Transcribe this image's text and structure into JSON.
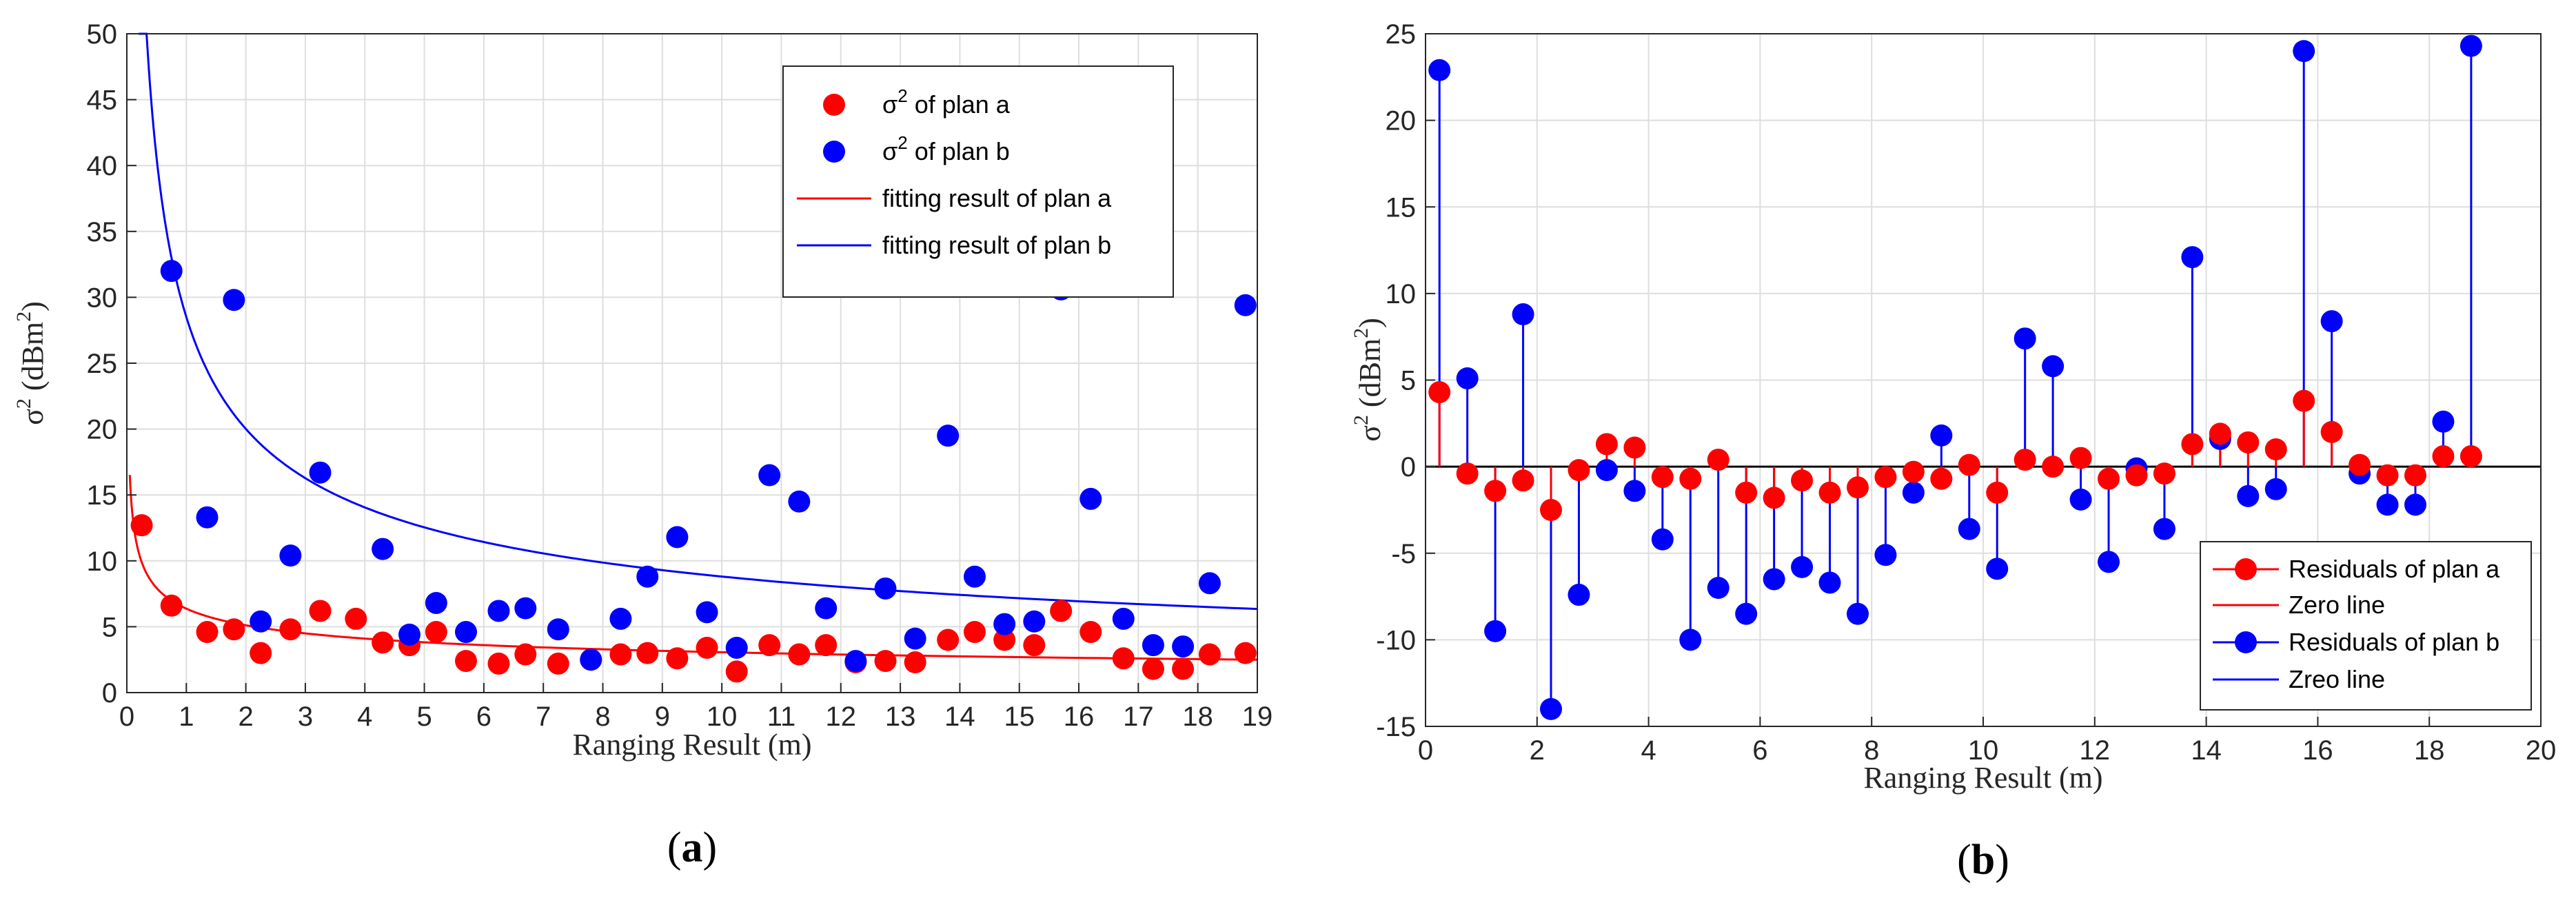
{
  "chart_data": [
    {
      "type": "scatter",
      "caption_open": "(",
      "caption_letter": "a",
      "caption_close": ")",
      "xlabel": "Ranging Result (m)",
      "ylabel_main": "σ",
      "ylabel_sup": "2",
      "ylabel_unit_open": " (dBm",
      "ylabel_unit_sup": "2",
      "ylabel_unit_close": ")",
      "xlim": [
        0,
        19
      ],
      "ylim": [
        0,
        50
      ],
      "xticks": [
        0,
        1,
        2,
        3,
        4,
        5,
        6,
        7,
        8,
        9,
        10,
        11,
        12,
        13,
        14,
        15,
        16,
        17,
        18,
        19
      ],
      "yticks": [
        0,
        5,
        10,
        15,
        20,
        25,
        30,
        35,
        40,
        45,
        50
      ],
      "grid": true,
      "legend_position": "top-right",
      "legend": [
        {
          "kind": "marker",
          "label_main": "σ",
          "label_sup": "2",
          "label_rest": " of plan a",
          "color": "#ff0000"
        },
        {
          "kind": "marker",
          "label_main": "σ",
          "label_sup": "2",
          "label_rest": " of plan b",
          "color": "#0000ff"
        },
        {
          "kind": "line",
          "label": "fitting result of plan a",
          "color": "#ff0000"
        },
        {
          "kind": "line",
          "label": "fitting result of plan b",
          "color": "#0000ff"
        }
      ],
      "series": [
        {
          "name": "σ2 of plan a",
          "color": "#ff0000",
          "x": [
            0.25,
            0.75,
            1.35,
            1.8,
            2.25,
            2.75,
            3.25,
            3.85,
            4.3,
            4.75,
            5.2,
            5.7,
            6.25,
            6.7,
            7.25,
            7.8,
            8.3,
            8.75,
            9.25,
            9.75,
            10.25,
            10.8,
            11.3,
            11.75,
            12.25,
            12.75,
            13.25,
            13.8,
            14.25,
            14.75,
            15.25,
            15.7,
            16.2,
            16.75,
            17.25,
            17.75,
            18.2,
            18.8
          ],
          "y": [
            12.7,
            6.6,
            4.6,
            4.8,
            3.0,
            4.8,
            6.2,
            5.6,
            3.8,
            3.6,
            4.6,
            2.4,
            2.2,
            2.9,
            2.2,
            2.5,
            2.9,
            3.0,
            2.6,
            3.4,
            1.6,
            3.6,
            2.9,
            3.6,
            2.3,
            2.4,
            2.3,
            4.0,
            4.6,
            4.0,
            3.6,
            6.2,
            4.6,
            2.6,
            1.8,
            1.8,
            2.9,
            3.0
          ]
        },
        {
          "name": "σ2 of plan b",
          "color": "#0000ff",
          "x": [
            0.75,
            1.35,
            1.8,
            2.25,
            2.75,
            3.25,
            4.3,
            4.75,
            5.2,
            5.7,
            6.25,
            6.7,
            7.25,
            7.8,
            8.3,
            8.75,
            9.25,
            9.75,
            10.25,
            10.8,
            11.3,
            11.75,
            12.25,
            12.75,
            13.25,
            13.8,
            14.25,
            14.75,
            15.25,
            15.7,
            16.2,
            16.75,
            17.25,
            17.75,
            18.2,
            18.8
          ],
          "y": [
            32.0,
            13.3,
            29.8,
            5.4,
            10.4,
            16.7,
            10.9,
            4.4,
            6.8,
            4.6,
            6.2,
            6.4,
            4.8,
            2.5,
            5.6,
            8.8,
            11.8,
            6.1,
            3.4,
            16.5,
            14.5,
            6.4,
            2.4,
            7.9,
            4.1,
            19.5,
            8.8,
            5.2,
            5.4,
            30.6,
            14.7,
            5.6,
            3.6,
            3.5,
            8.3,
            29.4
          ]
        }
      ],
      "fits": [
        {
          "name": "fitting result of plan a",
          "color": "#ff0000",
          "model": "power",
          "coef_a": 6.37,
          "coef_b": -0.318,
          "x_start": 0.05,
          "x_end": 19
        },
        {
          "name": "fitting result of plan b",
          "color": "#0000ff",
          "model": "power",
          "coef_a": 28.5,
          "coef_b": -0.51,
          "x_start": 0.2,
          "x_end": 19
        }
      ]
    },
    {
      "type": "stem",
      "caption_open": "(",
      "caption_letter": "b",
      "caption_close": ")",
      "xlabel": "Ranging Result (m)",
      "ylabel_main": "σ",
      "ylabel_sup": "2",
      "ylabel_unit_open": " (dBm",
      "ylabel_unit_sup": "2",
      "ylabel_unit_close": ")",
      "xlim": [
        0,
        20
      ],
      "ylim": [
        -15,
        25
      ],
      "xticks": [
        0,
        2,
        4,
        6,
        8,
        10,
        12,
        14,
        16,
        18,
        20
      ],
      "yticks": [
        -15,
        -10,
        -5,
        0,
        5,
        10,
        15,
        20,
        25
      ],
      "grid": true,
      "legend_position": "bottom-right",
      "legend": [
        {
          "kind": "stem",
          "label": "Residuals of plan a",
          "color": "#ff0000"
        },
        {
          "kind": "line",
          "label": "Zero line",
          "color": "#ff0000"
        },
        {
          "kind": "stem",
          "label": "Residuals of plan b",
          "color": "#0000ff"
        },
        {
          "kind": "line",
          "label": "Zreo line",
          "color": "#0000ff"
        }
      ],
      "baseline_value": 0,
      "series": [
        {
          "name": "Residuals of plan a",
          "color": "#ff0000",
          "x": [
            0.25,
            0.75,
            1.25,
            1.75,
            2.25,
            2.75,
            3.25,
            3.75,
            4.25,
            4.75,
            5.25,
            5.75,
            6.25,
            6.75,
            7.25,
            7.75,
            8.25,
            8.75,
            9.25,
            9.75,
            10.25,
            10.75,
            11.25,
            11.75,
            12.25,
            12.75,
            13.25,
            13.75,
            14.25,
            14.75,
            15.25,
            15.75,
            16.25,
            16.75,
            17.25,
            17.75,
            18.25,
            18.75
          ],
          "y": [
            4.3,
            -0.4,
            -1.4,
            -0.8,
            -2.5,
            -0.2,
            1.3,
            1.1,
            -0.6,
            -0.7,
            0.4,
            -1.5,
            -1.8,
            -0.8,
            -1.5,
            -1.2,
            -0.6,
            -0.3,
            -0.7,
            0.1,
            -1.5,
            0.4,
            0.0,
            0.5,
            -0.7,
            -0.5,
            -0.4,
            1.3,
            1.9,
            1.4,
            1.0,
            3.8,
            2.0,
            0.1,
            -0.5,
            -0.5,
            0.6,
            0.6
          ]
        },
        {
          "name": "Residuals of plan b",
          "color": "#0000ff",
          "x": [
            0.25,
            0.75,
            1.25,
            1.75,
            2.25,
            2.75,
            3.25,
            3.75,
            4.25,
            4.75,
            5.25,
            5.75,
            6.25,
            6.75,
            7.25,
            7.75,
            8.25,
            8.75,
            9.25,
            9.75,
            10.25,
            10.75,
            11.25,
            11.75,
            12.25,
            12.75,
            13.25,
            13.75,
            14.25,
            14.75,
            15.25,
            15.75,
            16.25,
            16.75,
            17.25,
            17.75,
            18.25,
            18.75
          ],
          "y": [
            22.9,
            5.1,
            -9.5,
            8.8,
            -14.0,
            -7.4,
            -0.2,
            -1.4,
            -4.2,
            -10.0,
            -7.0,
            -8.5,
            -6.5,
            -5.8,
            -6.7,
            -8.5,
            -5.1,
            -1.5,
            1.8,
            -3.6,
            -5.9,
            7.4,
            5.8,
            -1.9,
            -5.5,
            -0.1,
            -3.6,
            12.1,
            1.6,
            -1.7,
            -1.3,
            24.0,
            8.4,
            -0.4,
            -2.2,
            -2.2,
            2.6,
            24.3
          ]
        }
      ]
    }
  ]
}
